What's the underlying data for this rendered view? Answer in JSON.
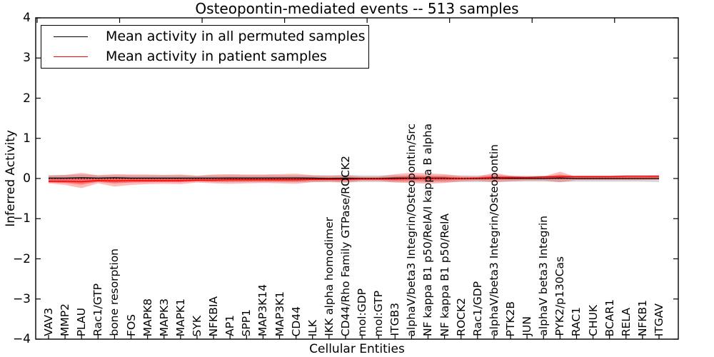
{
  "figure": {
    "title": "Osteopontin-mediated events -- 513 samples"
  },
  "legend": {
    "items": [
      {
        "label": "Mean activity in all permuted samples",
        "color": "#000000"
      },
      {
        "label": "Mean activity in patient samples",
        "color": "#ff0000"
      }
    ]
  },
  "axes": {
    "xlabel": "Cellular Entities",
    "ylabel": "Inferred Activity",
    "ytick_labels": [
      "4",
      "3",
      "2",
      "1",
      "0",
      "−1",
      "−2",
      "−3",
      "−4"
    ]
  },
  "chart_data": {
    "type": "area",
    "title": "Osteopontin-mediated events -- 513 samples",
    "xlabel": "Cellular Entities",
    "ylabel": "Inferred Activity",
    "ylim": [
      -4,
      4
    ],
    "yticks": [
      4,
      3,
      2,
      1,
      0,
      -1,
      -2,
      -3,
      -4
    ],
    "grid": false,
    "legend_position": "upper left",
    "categories": [
      "VAV3",
      "MMP2",
      "PLAU",
      "Rac1/GTP",
      "bone resorption",
      "FOS",
      "MAPK8",
      "MAPK3",
      "MAPK1",
      "SYK",
      "NFKBIA",
      "AP1",
      "SPP1",
      "MAP3K14",
      "MAP3K1",
      "CD44",
      "ILK",
      "IKK alpha homodimer",
      "CD44/Rho Family GTPase/ROCK2",
      "mol:GDP",
      "mol:GTP",
      "ITGB3",
      "alphaV/beta3 Integrin/Osteopontin/Src",
      "NF kappa B1 p50/RelA/I kappa B alpha",
      "NF kappa B1 p50/RelA",
      "ROCK2",
      "Rac1/GDP",
      "alphaV/beta3 Integrin/Osteopontin",
      "PTK2B",
      "JUN",
      "alphaV beta3 Integrin",
      "PYK2/p130Cas",
      "RAC1",
      "CHUK",
      "BCAR1",
      "RELA",
      "NFKB1",
      "ITGAV"
    ],
    "series": [
      {
        "name": "Mean activity in all permuted samples",
        "type": "line",
        "color": "#000000",
        "values": [
          0.01,
          0.01,
          0.02,
          0.01,
          0.02,
          0.01,
          0.01,
          0.01,
          0.01,
          0.01,
          0.01,
          0.01,
          0.01,
          0.01,
          0.01,
          0.01,
          0.01,
          0.0,
          0.01,
          0.0,
          0.0,
          0.01,
          0.01,
          0.01,
          0.01,
          0.0,
          0.0,
          0.01,
          0.0,
          0.0,
          0.0,
          0.01,
          0.0,
          0.0,
          0.0,
          0.0,
          0.0,
          0.0
        ]
      },
      {
        "name": "Mean activity in patient samples",
        "type": "line",
        "color": "#ff0000",
        "values": [
          -0.07,
          -0.07,
          -0.08,
          -0.05,
          -0.06,
          -0.05,
          -0.05,
          -0.05,
          -0.05,
          -0.04,
          -0.04,
          -0.03,
          -0.03,
          -0.03,
          -0.03,
          -0.03,
          -0.02,
          -0.02,
          -0.02,
          -0.01,
          -0.01,
          -0.01,
          0.0,
          0.0,
          0.0,
          0.0,
          0.01,
          0.02,
          0.03,
          0.03,
          0.04,
          0.04,
          0.05,
          0.05,
          0.05,
          0.06,
          0.06,
          0.06
        ]
      }
    ],
    "bands": [
      {
        "name": "permuted sample range",
        "color": "#808080",
        "opacity": 0.3,
        "upper": [
          0.09,
          0.09,
          0.1,
          0.08,
          0.08,
          0.08,
          0.08,
          0.08,
          0.08,
          0.07,
          0.08,
          0.08,
          0.08,
          0.08,
          0.08,
          0.08,
          0.08,
          0.08,
          0.09,
          0.08,
          0.08,
          0.08,
          0.08,
          0.08,
          0.08,
          0.08,
          0.08,
          0.08,
          0.07,
          0.07,
          0.07,
          0.08,
          0.07,
          0.07,
          0.07,
          0.07,
          0.07,
          0.08
        ],
        "lower": [
          -0.1,
          -0.1,
          -0.11,
          -0.09,
          -0.1,
          -0.09,
          -0.09,
          -0.09,
          -0.09,
          -0.08,
          -0.09,
          -0.09,
          -0.09,
          -0.09,
          -0.09,
          -0.09,
          -0.09,
          -0.09,
          -0.1,
          -0.09,
          -0.09,
          -0.09,
          -0.09,
          -0.09,
          -0.09,
          -0.09,
          -0.09,
          -0.09,
          -0.08,
          -0.08,
          -0.08,
          -0.09,
          -0.08,
          -0.08,
          -0.08,
          -0.08,
          -0.08,
          -0.09
        ]
      },
      {
        "name": "patient sample range outer",
        "color": "#ff0000",
        "opacity": 0.27,
        "upper": [
          0.07,
          0.09,
          0.14,
          0.08,
          0.11,
          0.1,
          0.1,
          0.09,
          0.1,
          0.07,
          0.1,
          0.11,
          0.1,
          0.1,
          0.11,
          0.12,
          0.08,
          0.07,
          0.08,
          0.05,
          0.05,
          0.11,
          0.14,
          0.13,
          0.11,
          0.06,
          0.05,
          0.14,
          0.07,
          0.04,
          0.05,
          0.17,
          0.04,
          0.04,
          0.04,
          0.04,
          0.04,
          0.05
        ],
        "lower": [
          -0.12,
          -0.16,
          -0.24,
          -0.12,
          -0.2,
          -0.16,
          -0.14,
          -0.13,
          -0.14,
          -0.1,
          -0.12,
          -0.13,
          -0.12,
          -0.11,
          -0.12,
          -0.13,
          -0.09,
          -0.08,
          -0.1,
          -0.06,
          -0.06,
          -0.1,
          -0.11,
          -0.13,
          -0.11,
          -0.07,
          -0.06,
          -0.09,
          -0.07,
          -0.05,
          -0.05,
          -0.09,
          -0.04,
          -0.04,
          -0.04,
          -0.04,
          -0.04,
          -0.03
        ]
      },
      {
        "name": "patient sample range inner",
        "color": "#ff0000",
        "opacity": 0.33,
        "inner_fraction": 0.45
      }
    ],
    "reference_line": {
      "y": 0,
      "style": "dashed",
      "color": "#000000"
    }
  }
}
